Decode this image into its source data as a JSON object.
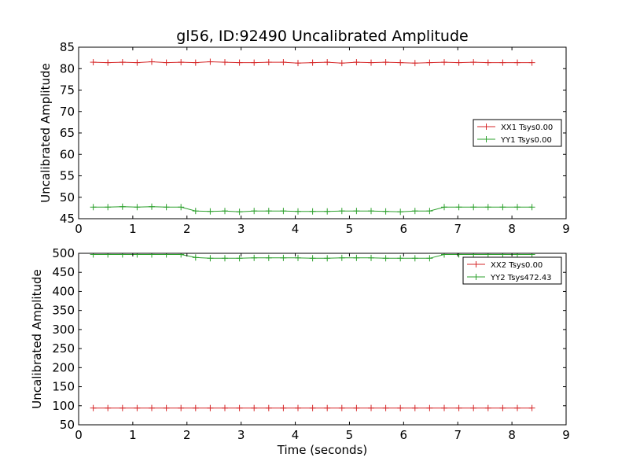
{
  "chart_data": [
    {
      "type": "line",
      "title": "gl56, ID:92490 Uncalibrated Amplitude",
      "xlabel": "",
      "ylabel": "Uncalibrated Amplitude",
      "xlim": [
        0,
        9
      ],
      "ylim": [
        45,
        85
      ],
      "xticks": [
        "0",
        "1",
        "2",
        "3",
        "4",
        "5",
        "6",
        "7",
        "8",
        "9"
      ],
      "yticks": [
        "45",
        "50",
        "55",
        "60",
        "65",
        "70",
        "75",
        "80",
        "85"
      ],
      "grid": false,
      "legend_position": "center-right",
      "x": [
        0.27,
        0.54,
        0.81,
        1.08,
        1.35,
        1.62,
        1.89,
        2.16,
        2.43,
        2.7,
        2.97,
        3.24,
        3.51,
        3.78,
        4.05,
        4.32,
        4.59,
        4.86,
        5.13,
        5.4,
        5.67,
        5.94,
        6.21,
        6.48,
        6.75,
        7.02,
        7.29,
        7.56,
        7.83,
        8.1,
        8.37
      ],
      "series": [
        {
          "name": "XX1 Tsys0.00",
          "color": "#d62728",
          "values": [
            81.5,
            81.4,
            81.5,
            81.4,
            81.6,
            81.4,
            81.5,
            81.4,
            81.6,
            81.5,
            81.4,
            81.4,
            81.5,
            81.5,
            81.3,
            81.4,
            81.5,
            81.3,
            81.5,
            81.4,
            81.5,
            81.4,
            81.3,
            81.4,
            81.5,
            81.4,
            81.5,
            81.4,
            81.4,
            81.4,
            81.4
          ]
        },
        {
          "name": "YY1 Tsys0.00",
          "color": "#2ca02c",
          "values": [
            47.7,
            47.7,
            47.8,
            47.7,
            47.8,
            47.7,
            47.7,
            46.8,
            46.7,
            46.8,
            46.6,
            46.8,
            46.8,
            46.8,
            46.7,
            46.7,
            46.7,
            46.8,
            46.8,
            46.8,
            46.7,
            46.6,
            46.8,
            46.8,
            47.7,
            47.7,
            47.7,
            47.7,
            47.7,
            47.7,
            47.7
          ]
        }
      ]
    },
    {
      "type": "line",
      "title": "",
      "xlabel": "Time (seconds)",
      "ylabel": "Uncalibrated Amplitude",
      "xlim": [
        0,
        9
      ],
      "ylim": [
        50,
        500
      ],
      "xticks": [
        "0",
        "1",
        "2",
        "3",
        "4",
        "5",
        "6",
        "7",
        "8",
        "9"
      ],
      "yticks": [
        "50",
        "100",
        "150",
        "200",
        "250",
        "300",
        "350",
        "400",
        "450",
        "500"
      ],
      "grid": false,
      "legend_position": "top-right",
      "x": [
        0.27,
        0.54,
        0.81,
        1.08,
        1.35,
        1.62,
        1.89,
        2.16,
        2.43,
        2.7,
        2.97,
        3.24,
        3.51,
        3.78,
        4.05,
        4.32,
        4.59,
        4.86,
        5.13,
        5.4,
        5.67,
        5.94,
        6.21,
        6.48,
        6.75,
        7.02,
        7.29,
        7.56,
        7.83,
        8.1,
        8.37
      ],
      "series": [
        {
          "name": "XX2 Tsys0.00",
          "color": "#d62728",
          "values": [
            94,
            94,
            94,
            94,
            94,
            94,
            94,
            94,
            94,
            94,
            94,
            94,
            94,
            94,
            94,
            94,
            94,
            94,
            94,
            94,
            94,
            94,
            94,
            94,
            94,
            94,
            94,
            94,
            94,
            94,
            94
          ]
        },
        {
          "name": "YY2 Tsys472.43",
          "color": "#2ca02c",
          "values": [
            497,
            497,
            497,
            497,
            497,
            497,
            497,
            489,
            487,
            487,
            487,
            488,
            488,
            488,
            488,
            487,
            487,
            488,
            488,
            488,
            487,
            487,
            487,
            487,
            497,
            497,
            497,
            497,
            497,
            497,
            497
          ]
        }
      ]
    }
  ]
}
